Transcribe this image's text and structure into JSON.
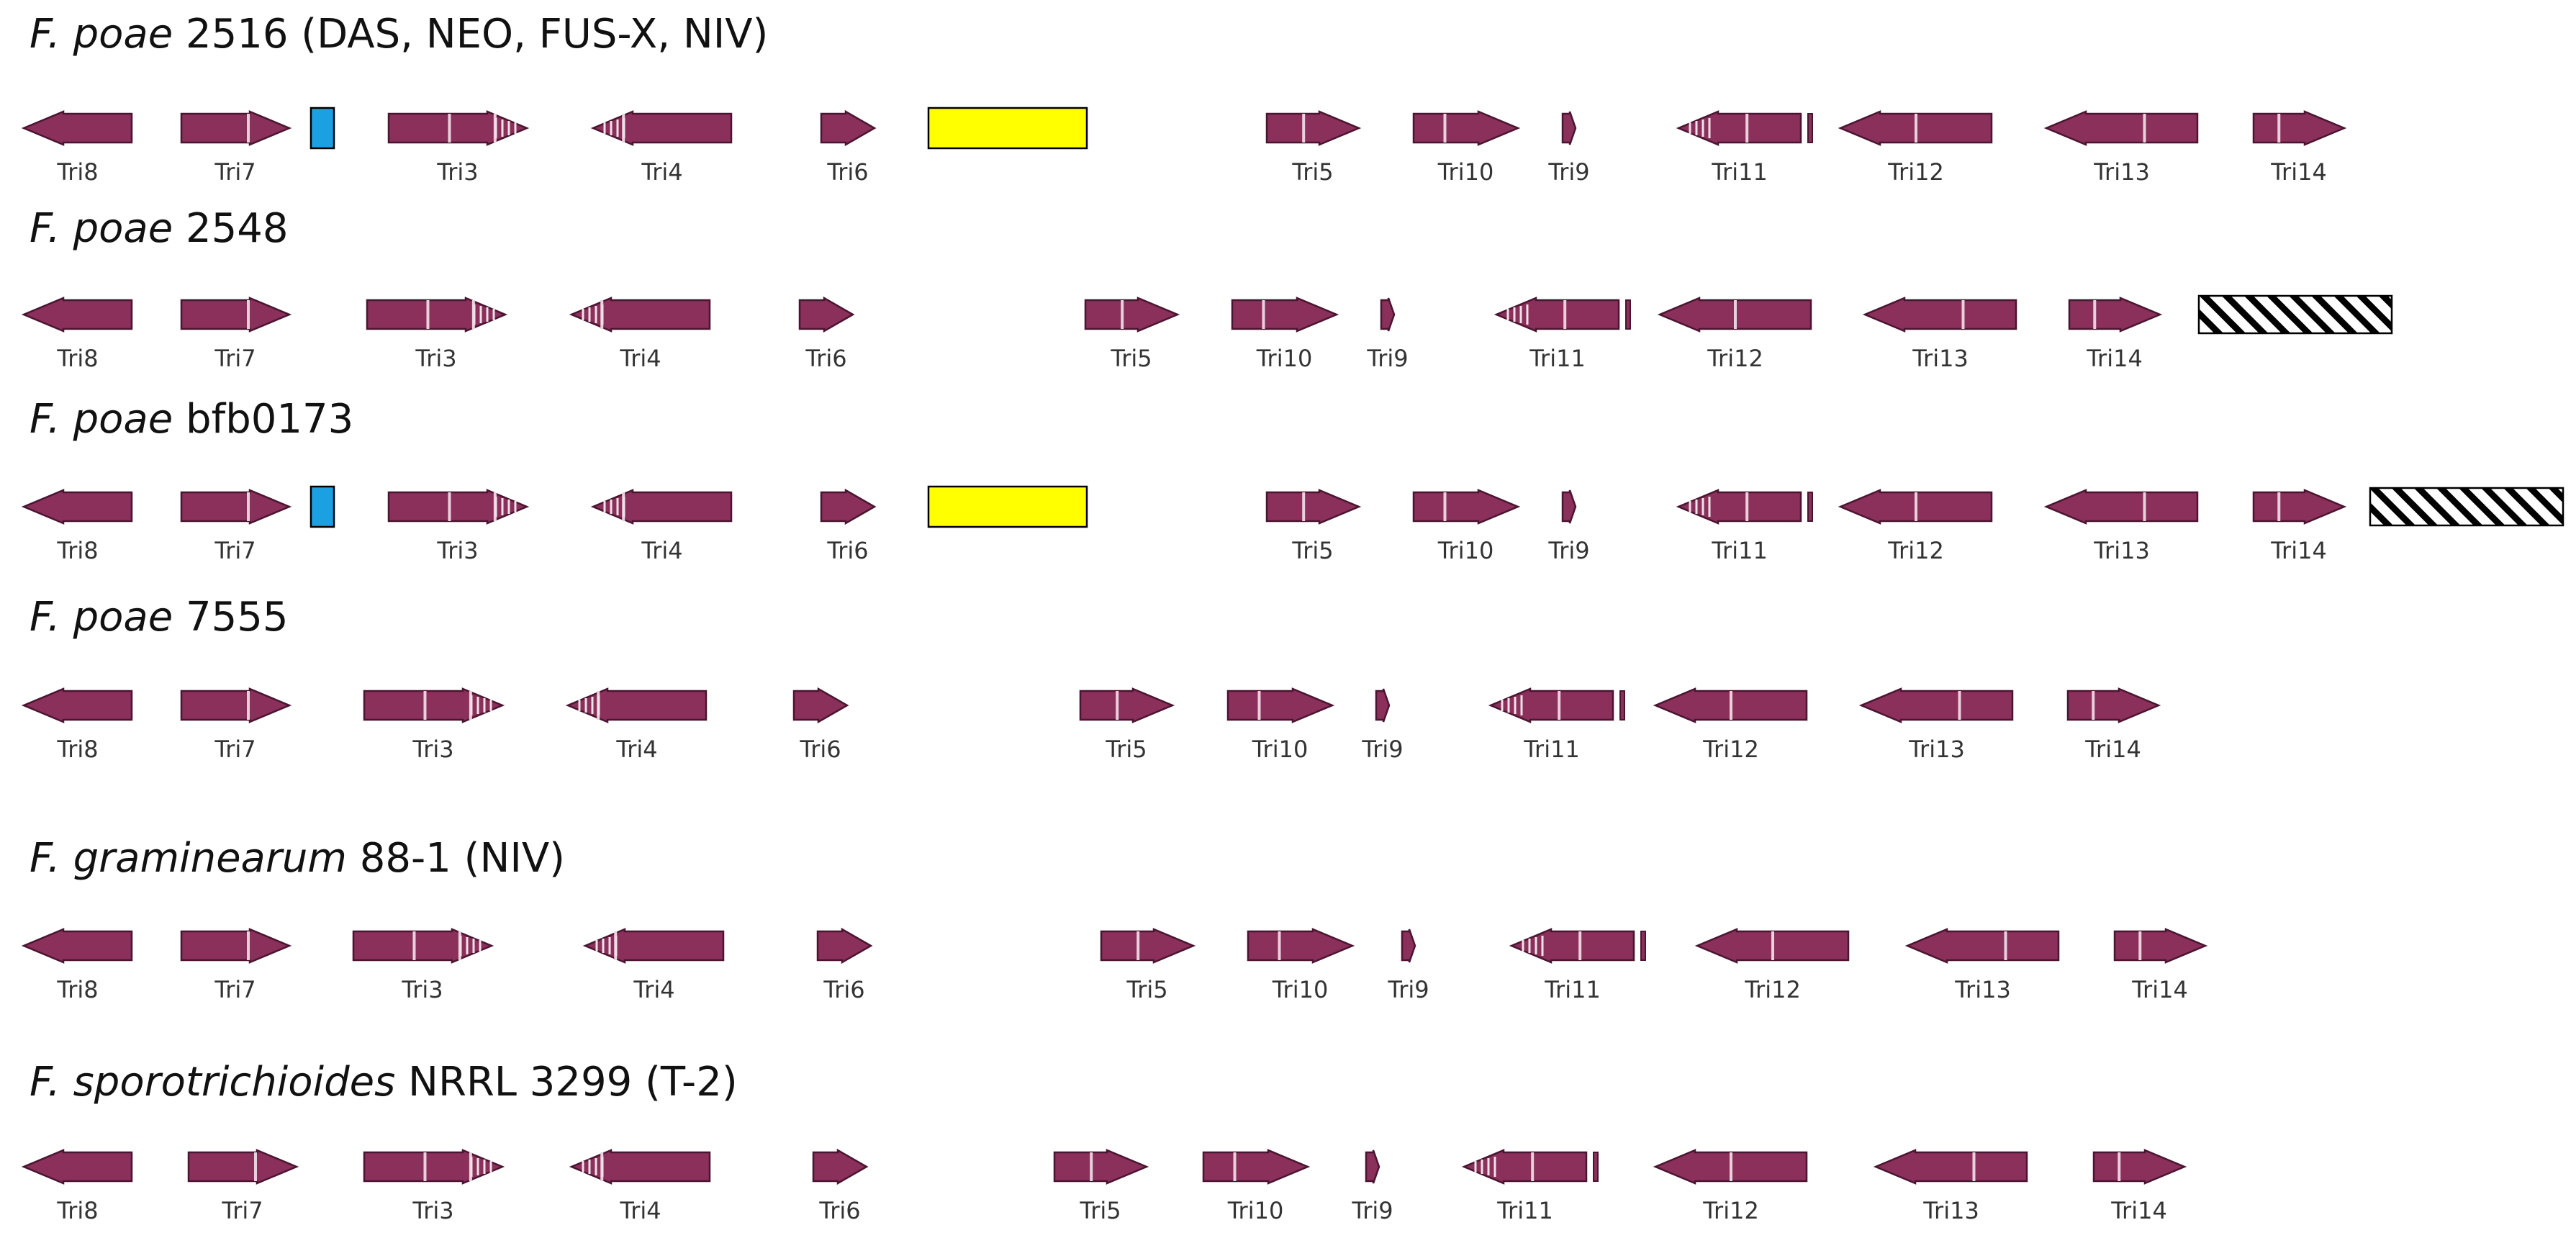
{
  "gene_color": "#8b2f5b",
  "gene_stroke": "#4a1530",
  "rows": [
    {
      "species": "F. poae",
      "strain": "2516 (DAS, NEO, FUS-X, NIV)",
      "genes": [
        {
          "label": "Tri8",
          "dir": "left",
          "type": "g8"
        },
        {
          "label": "Tri7",
          "dir": "right",
          "type": "g7"
        },
        {
          "label": "Tri3",
          "dir": "right",
          "type": "g3"
        },
        {
          "label": "Tri4",
          "dir": "left",
          "type": "g4"
        },
        {
          "label": "Tri6",
          "dir": "right",
          "type": "g6"
        },
        {
          "label": "Tri5",
          "dir": "right",
          "type": "g5"
        },
        {
          "label": "Tri10",
          "dir": "right",
          "type": "g10"
        },
        {
          "label": "Tri9",
          "dir": "right",
          "type": "g9"
        },
        {
          "label": "Tri11",
          "dir": "left",
          "type": "g11"
        },
        {
          "label": "Tri12",
          "dir": "left",
          "type": "g12"
        },
        {
          "label": "Tri13",
          "dir": "left",
          "type": "g13"
        },
        {
          "label": "Tri14",
          "dir": "right",
          "type": "g14"
        }
      ],
      "extras": [
        {
          "kind": "blue",
          "color": "#1ba1e2"
        },
        {
          "kind": "yellow",
          "color": "#ffff00"
        }
      ]
    },
    {
      "species": "F. poae",
      "strain": "2548",
      "genes": [
        {
          "label": "Tri8",
          "dir": "left",
          "type": "g8"
        },
        {
          "label": "Tri7",
          "dir": "right",
          "type": "g7"
        },
        {
          "label": "Tri3",
          "dir": "right",
          "type": "g3"
        },
        {
          "label": "Tri4",
          "dir": "left",
          "type": "g4"
        },
        {
          "label": "Tri6",
          "dir": "right",
          "type": "g6"
        },
        {
          "label": "Tri5",
          "dir": "right",
          "type": "g5"
        },
        {
          "label": "Tri10",
          "dir": "right",
          "type": "g10"
        },
        {
          "label": "Tri9",
          "dir": "right",
          "type": "g9"
        },
        {
          "label": "Tri11",
          "dir": "left",
          "type": "g11"
        },
        {
          "label": "Tri12",
          "dir": "left",
          "type": "g12"
        },
        {
          "label": "Tri13",
          "dir": "left",
          "type": "g13"
        },
        {
          "label": "Tri14",
          "dir": "right",
          "type": "g14"
        }
      ],
      "extras": [
        {
          "kind": "hatch",
          "color": "#000000"
        }
      ]
    },
    {
      "species": "F. poae",
      "strain": "bfb0173",
      "genes": [
        {
          "label": "Tri8",
          "dir": "left",
          "type": "g8"
        },
        {
          "label": "Tri7",
          "dir": "right",
          "type": "g7"
        },
        {
          "label": "Tri3",
          "dir": "right",
          "type": "g3"
        },
        {
          "label": "Tri4",
          "dir": "left",
          "type": "g4"
        },
        {
          "label": "Tri6",
          "dir": "right",
          "type": "g6"
        },
        {
          "label": "Tri5",
          "dir": "right",
          "type": "g5"
        },
        {
          "label": "Tri10",
          "dir": "right",
          "type": "g10"
        },
        {
          "label": "Tri9",
          "dir": "right",
          "type": "g9"
        },
        {
          "label": "Tri11",
          "dir": "left",
          "type": "g11"
        },
        {
          "label": "Tri12",
          "dir": "left",
          "type": "g12"
        },
        {
          "label": "Tri13",
          "dir": "left",
          "type": "g13"
        },
        {
          "label": "Tri14",
          "dir": "right",
          "type": "g14"
        }
      ],
      "extras": [
        {
          "kind": "blue",
          "color": "#1ba1e2"
        },
        {
          "kind": "yellow",
          "color": "#ffff00"
        },
        {
          "kind": "hatch",
          "color": "#000000"
        }
      ]
    },
    {
      "species": "F. poae",
      "strain": "7555",
      "genes": [
        {
          "label": "Tri8",
          "dir": "left",
          "type": "g8"
        },
        {
          "label": "Tri7",
          "dir": "right",
          "type": "g7"
        },
        {
          "label": "Tri3",
          "dir": "right",
          "type": "g3"
        },
        {
          "label": "Tri4",
          "dir": "left",
          "type": "g4"
        },
        {
          "label": "Tri6",
          "dir": "right",
          "type": "g6"
        },
        {
          "label": "Tri5",
          "dir": "right",
          "type": "g5"
        },
        {
          "label": "Tri10",
          "dir": "right",
          "type": "g10"
        },
        {
          "label": "Tri9",
          "dir": "right",
          "type": "g9"
        },
        {
          "label": "Tri11",
          "dir": "left",
          "type": "g11"
        },
        {
          "label": "Tri12",
          "dir": "left",
          "type": "g12"
        },
        {
          "label": "Tri13",
          "dir": "left",
          "type": "g13"
        },
        {
          "label": "Tri14",
          "dir": "right",
          "type": "g14"
        }
      ],
      "extras": []
    },
    {
      "species": "F. graminearum",
      "strain": "88-1 (NIV)",
      "genes": [
        {
          "label": "Tri8",
          "dir": "left",
          "type": "g8"
        },
        {
          "label": "Tri7",
          "dir": "right",
          "type": "g7"
        },
        {
          "label": "Tri3",
          "dir": "right",
          "type": "g3"
        },
        {
          "label": "Tri4",
          "dir": "left",
          "type": "g4"
        },
        {
          "label": "Tri6",
          "dir": "right",
          "type": "g6"
        },
        {
          "label": "Tri5",
          "dir": "right",
          "type": "g5"
        },
        {
          "label": "Tri10",
          "dir": "right",
          "type": "g10"
        },
        {
          "label": "Tri9",
          "dir": "right",
          "type": "g9"
        },
        {
          "label": "Tri11",
          "dir": "left",
          "type": "g11"
        },
        {
          "label": "Tri12",
          "dir": "left",
          "type": "g12"
        },
        {
          "label": "Tri13",
          "dir": "left",
          "type": "g13"
        },
        {
          "label": "Tri14",
          "dir": "right",
          "type": "g14"
        }
      ],
      "extras": []
    },
    {
      "species": "F. sporotrichioides",
      "strain": "NRRL 3299 (T-2)",
      "genes": [
        {
          "label": "Tri8",
          "dir": "left",
          "type": "g8"
        },
        {
          "label": "Tri7",
          "dir": "right",
          "type": "g7"
        },
        {
          "label": "Tri3",
          "dir": "right",
          "type": "g3"
        },
        {
          "label": "Tri4",
          "dir": "left",
          "type": "g4"
        },
        {
          "label": "Tri6",
          "dir": "right",
          "type": "g6"
        },
        {
          "label": "Tri5",
          "dir": "right",
          "type": "g5"
        },
        {
          "label": "Tri10",
          "dir": "right",
          "type": "g10"
        },
        {
          "label": "Tri9",
          "dir": "right",
          "type": "g9"
        },
        {
          "label": "Tri11",
          "dir": "left",
          "type": "g11"
        },
        {
          "label": "Tri12",
          "dir": "left",
          "type": "g12"
        },
        {
          "label": "Tri13",
          "dir": "left",
          "type": "g13"
        },
        {
          "label": "Tri14",
          "dir": "right",
          "type": "g14"
        }
      ],
      "extras": []
    }
  ]
}
